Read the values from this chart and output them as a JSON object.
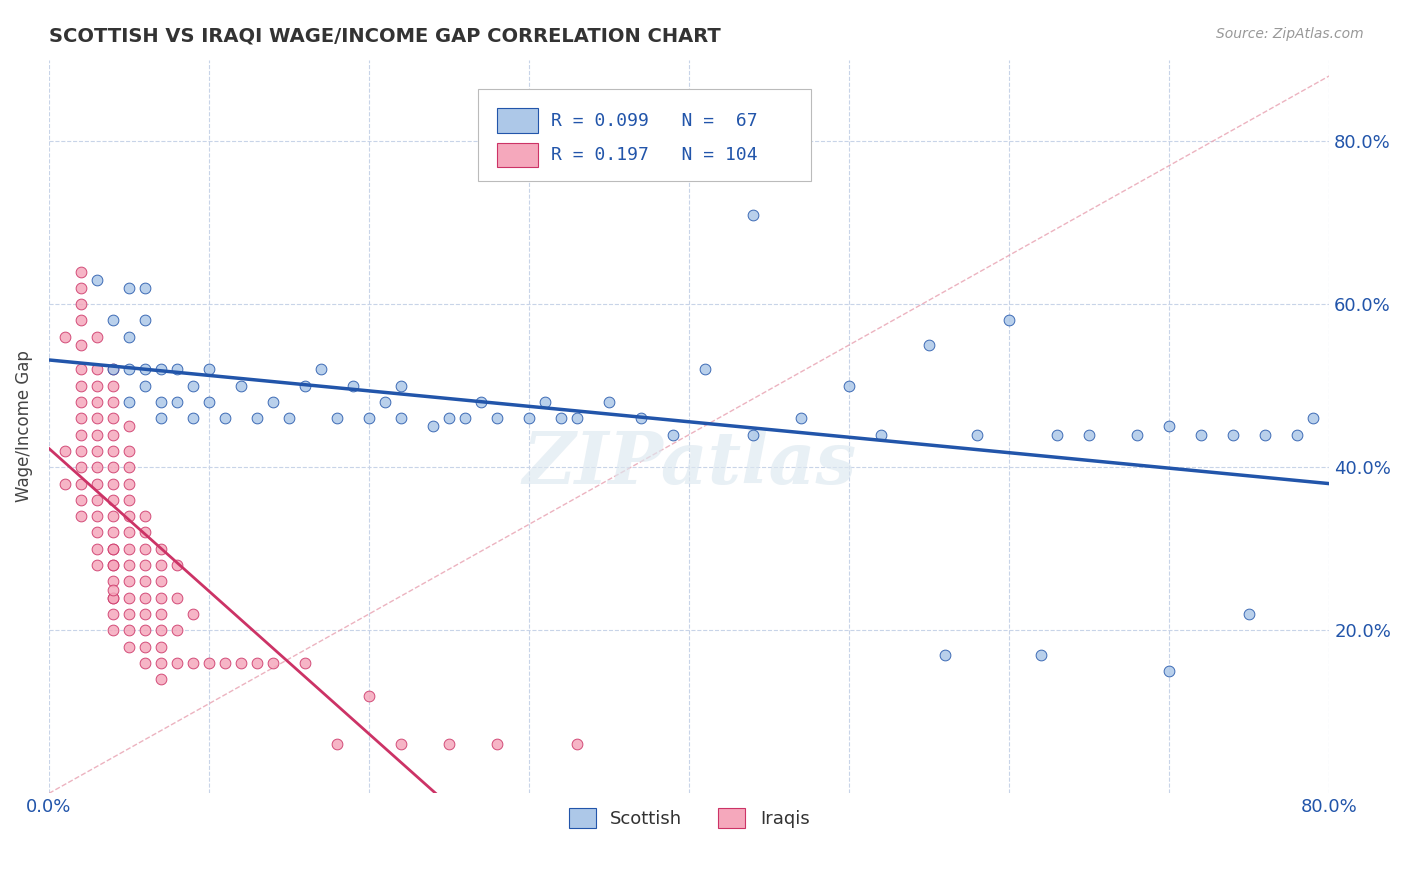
{
  "title": "SCOTTISH VS IRAQI WAGE/INCOME GAP CORRELATION CHART",
  "source_text": "Source: ZipAtlas.com",
  "ylabel": "Wage/Income Gap",
  "xlim": [
    0.0,
    0.8
  ],
  "ylim": [
    0.0,
    0.9
  ],
  "ytick_labels_right": [
    "20.0%",
    "40.0%",
    "60.0%",
    "80.0%"
  ],
  "scottish_R": 0.099,
  "scottish_N": 67,
  "iraqi_R": 0.197,
  "iraqi_N": 104,
  "scottish_color": "#adc8e8",
  "iraqi_color": "#f5a8bc",
  "scottish_line_color": "#2255aa",
  "iraqi_line_color": "#cc3366",
  "ref_line_color": "#e8a0b0",
  "legend_text_color": "#2255aa",
  "watermark": "ZIPatlas",
  "background_color": "#ffffff",
  "grid_color": "#c8d4e8",
  "scottish_x": [
    0.03,
    0.04,
    0.04,
    0.05,
    0.05,
    0.05,
    0.05,
    0.06,
    0.06,
    0.06,
    0.06,
    0.07,
    0.07,
    0.07,
    0.08,
    0.08,
    0.09,
    0.09,
    0.1,
    0.1,
    0.11,
    0.12,
    0.13,
    0.14,
    0.15,
    0.16,
    0.17,
    0.18,
    0.19,
    0.2,
    0.21,
    0.22,
    0.22,
    0.24,
    0.25,
    0.26,
    0.27,
    0.28,
    0.3,
    0.31,
    0.32,
    0.33,
    0.35,
    0.37,
    0.39,
    0.41,
    0.44,
    0.47,
    0.5,
    0.52,
    0.55,
    0.58,
    0.6,
    0.63,
    0.65,
    0.68,
    0.7,
    0.72,
    0.74,
    0.75,
    0.76,
    0.78,
    0.79,
    0.44,
    0.56,
    0.62,
    0.7
  ],
  "scottish_y": [
    0.63,
    0.52,
    0.58,
    0.48,
    0.52,
    0.56,
    0.62,
    0.52,
    0.58,
    0.62,
    0.5,
    0.48,
    0.52,
    0.46,
    0.48,
    0.52,
    0.46,
    0.5,
    0.48,
    0.52,
    0.46,
    0.5,
    0.46,
    0.48,
    0.46,
    0.5,
    0.52,
    0.46,
    0.5,
    0.46,
    0.48,
    0.46,
    0.5,
    0.45,
    0.46,
    0.46,
    0.48,
    0.46,
    0.46,
    0.48,
    0.46,
    0.46,
    0.48,
    0.46,
    0.44,
    0.52,
    0.44,
    0.46,
    0.5,
    0.44,
    0.55,
    0.44,
    0.58,
    0.44,
    0.44,
    0.44,
    0.45,
    0.44,
    0.44,
    0.22,
    0.44,
    0.44,
    0.46,
    0.71,
    0.17,
    0.17,
    0.15
  ],
  "iraqi_x": [
    0.01,
    0.01,
    0.01,
    0.02,
    0.02,
    0.02,
    0.02,
    0.02,
    0.02,
    0.02,
    0.02,
    0.02,
    0.02,
    0.02,
    0.02,
    0.02,
    0.02,
    0.02,
    0.03,
    0.03,
    0.03,
    0.03,
    0.03,
    0.03,
    0.03,
    0.03,
    0.03,
    0.03,
    0.03,
    0.03,
    0.03,
    0.03,
    0.04,
    0.04,
    0.04,
    0.04,
    0.04,
    0.04,
    0.04,
    0.04,
    0.04,
    0.04,
    0.04,
    0.04,
    0.04,
    0.04,
    0.04,
    0.04,
    0.04,
    0.04,
    0.04,
    0.04,
    0.04,
    0.05,
    0.05,
    0.05,
    0.05,
    0.05,
    0.05,
    0.05,
    0.05,
    0.05,
    0.05,
    0.05,
    0.05,
    0.05,
    0.05,
    0.06,
    0.06,
    0.06,
    0.06,
    0.06,
    0.06,
    0.06,
    0.06,
    0.06,
    0.06,
    0.07,
    0.07,
    0.07,
    0.07,
    0.07,
    0.07,
    0.07,
    0.07,
    0.07,
    0.08,
    0.08,
    0.08,
    0.08,
    0.09,
    0.09,
    0.1,
    0.11,
    0.12,
    0.13,
    0.14,
    0.16,
    0.18,
    0.2,
    0.22,
    0.25,
    0.28,
    0.33
  ],
  "iraqi_y": [
    0.38,
    0.42,
    0.56,
    0.34,
    0.36,
    0.38,
    0.4,
    0.42,
    0.44,
    0.46,
    0.48,
    0.5,
    0.52,
    0.55,
    0.58,
    0.62,
    0.64,
    0.6,
    0.28,
    0.3,
    0.32,
    0.34,
    0.36,
    0.38,
    0.4,
    0.42,
    0.44,
    0.46,
    0.48,
    0.5,
    0.52,
    0.56,
    0.24,
    0.26,
    0.28,
    0.3,
    0.32,
    0.34,
    0.36,
    0.38,
    0.4,
    0.42,
    0.44,
    0.46,
    0.48,
    0.5,
    0.52,
    0.2,
    0.22,
    0.24,
    0.25,
    0.28,
    0.3,
    0.18,
    0.2,
    0.22,
    0.24,
    0.26,
    0.28,
    0.3,
    0.32,
    0.34,
    0.36,
    0.38,
    0.4,
    0.42,
    0.45,
    0.16,
    0.18,
    0.2,
    0.22,
    0.24,
    0.26,
    0.28,
    0.3,
    0.32,
    0.34,
    0.14,
    0.16,
    0.18,
    0.2,
    0.22,
    0.24,
    0.26,
    0.28,
    0.3,
    0.16,
    0.2,
    0.24,
    0.28,
    0.16,
    0.22,
    0.16,
    0.16,
    0.16,
    0.16,
    0.16,
    0.16,
    0.06,
    0.12,
    0.06,
    0.06,
    0.06,
    0.06
  ]
}
